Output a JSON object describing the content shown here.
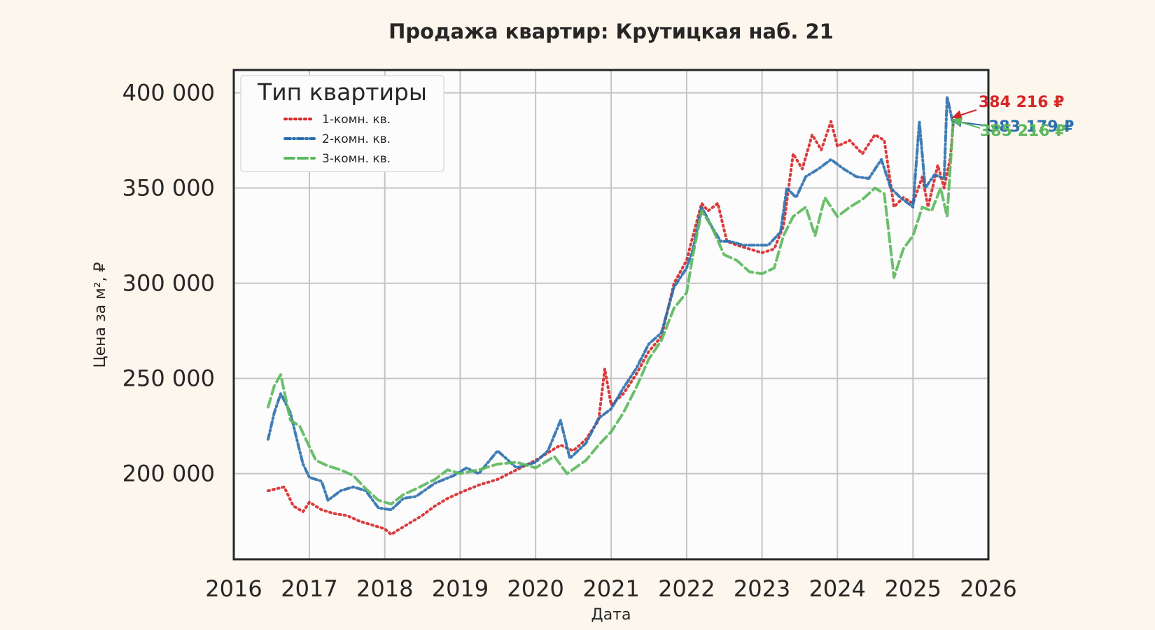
{
  "chart_data": {
    "type": "line",
    "title": "Продажа квартир: Крутицкая наб. 21",
    "xlabel": "Дата",
    "ylabel": "Цена за м², ₽",
    "xlim": [
      "2016-01-01",
      "2026-01-01"
    ],
    "ylim": [
      155000,
      412000
    ],
    "x_ticks": [
      "2016",
      "2017",
      "2018",
      "2019",
      "2020",
      "2021",
      "2022",
      "2023",
      "2024",
      "2025",
      "2026"
    ],
    "y_ticks": [
      {
        "value": 200000,
        "label": "200 000"
      },
      {
        "value": 250000,
        "label": "250 000"
      },
      {
        "value": 300000,
        "label": "300 000"
      },
      {
        "value": 350000,
        "label": "350 000"
      },
      {
        "value": 400000,
        "label": "400 000"
      }
    ],
    "grid": true,
    "legend": {
      "title": "Тип квартиры",
      "position": "top-left"
    },
    "series": [
      {
        "name": "1-комн. кв.",
        "color": "#d62728",
        "style": "dotted",
        "end_label": "384 216 ₽",
        "points": [
          [
            "2016-06-15",
            191000
          ],
          [
            "2016-09-01",
            193000
          ],
          [
            "2016-10-15",
            183000
          ],
          [
            "2016-12-01",
            180000
          ],
          [
            "2017-01-01",
            185000
          ],
          [
            "2017-03-01",
            181000
          ],
          [
            "2017-05-01",
            179000
          ],
          [
            "2017-07-01",
            178000
          ],
          [
            "2017-09-01",
            175000
          ],
          [
            "2017-11-01",
            173000
          ],
          [
            "2018-01-01",
            171000
          ],
          [
            "2018-02-01",
            168000
          ],
          [
            "2018-03-01",
            170000
          ],
          [
            "2018-05-01",
            174000
          ],
          [
            "2018-07-01",
            178000
          ],
          [
            "2018-09-01",
            183000
          ],
          [
            "2018-11-01",
            187000
          ],
          [
            "2019-01-01",
            190000
          ],
          [
            "2019-04-01",
            194000
          ],
          [
            "2019-07-01",
            197000
          ],
          [
            "2019-10-01",
            202000
          ],
          [
            "2020-01-01",
            207000
          ],
          [
            "2020-03-01",
            211000
          ],
          [
            "2020-05-01",
            215000
          ],
          [
            "2020-07-01",
            212000
          ],
          [
            "2020-09-01",
            218000
          ],
          [
            "2020-11-01",
            228000
          ],
          [
            "2020-12-01",
            255000
          ],
          [
            "2021-01-01",
            236000
          ],
          [
            "2021-03-01",
            242000
          ],
          [
            "2021-05-01",
            252000
          ],
          [
            "2021-07-01",
            264000
          ],
          [
            "2021-09-01",
            272000
          ],
          [
            "2021-11-01",
            300000
          ],
          [
            "2022-01-01",
            312000
          ],
          [
            "2022-02-01",
            325000
          ],
          [
            "2022-03-15",
            342000
          ],
          [
            "2022-04-15",
            338000
          ],
          [
            "2022-06-01",
            342000
          ],
          [
            "2022-07-15",
            322000
          ],
          [
            "2022-09-01",
            320000
          ],
          [
            "2022-11-01",
            318000
          ],
          [
            "2023-01-01",
            316000
          ],
          [
            "2023-03-01",
            318000
          ],
          [
            "2023-04-15",
            330000
          ],
          [
            "2023-06-01",
            368000
          ],
          [
            "2023-07-15",
            360000
          ],
          [
            "2023-09-01",
            378000
          ],
          [
            "2023-10-15",
            370000
          ],
          [
            "2023-12-01",
            385000
          ],
          [
            "2024-01-01",
            372000
          ],
          [
            "2024-03-01",
            375000
          ],
          [
            "2024-05-01",
            368000
          ],
          [
            "2024-07-01",
            378000
          ],
          [
            "2024-08-15",
            375000
          ],
          [
            "2024-10-01",
            340000
          ],
          [
            "2024-11-15",
            345000
          ],
          [
            "2025-01-01",
            342000
          ],
          [
            "2025-02-15",
            356000
          ],
          [
            "2025-03-15",
            340000
          ],
          [
            "2025-05-01",
            362000
          ],
          [
            "2025-06-01",
            350000
          ],
          [
            "2025-07-01",
            366000
          ],
          [
            "2025-07-15",
            384216
          ]
        ]
      },
      {
        "name": "2-комн. кв.",
        "color": "#2b6fad",
        "style": "dashdot",
        "end_label": "383 179 ₽",
        "points": [
          [
            "2016-06-15",
            218000
          ],
          [
            "2016-07-15",
            232000
          ],
          [
            "2016-08-15",
            242000
          ],
          [
            "2016-10-01",
            232000
          ],
          [
            "2016-11-01",
            218000
          ],
          [
            "2016-12-01",
            205000
          ],
          [
            "2017-01-01",
            198000
          ],
          [
            "2017-03-01",
            196000
          ],
          [
            "2017-04-01",
            186000
          ],
          [
            "2017-06-01",
            191000
          ],
          [
            "2017-08-01",
            193000
          ],
          [
            "2017-10-01",
            191000
          ],
          [
            "2017-12-01",
            182000
          ],
          [
            "2018-02-01",
            181000
          ],
          [
            "2018-04-01",
            187000
          ],
          [
            "2018-06-01",
            188000
          ],
          [
            "2018-09-01",
            195000
          ],
          [
            "2018-12-01",
            199000
          ],
          [
            "2019-02-01",
            203000
          ],
          [
            "2019-04-01",
            200000
          ],
          [
            "2019-07-01",
            212000
          ],
          [
            "2019-10-01",
            203000
          ],
          [
            "2020-01-01",
            206000
          ],
          [
            "2020-03-01",
            212000
          ],
          [
            "2020-05-01",
            228000
          ],
          [
            "2020-06-15",
            208000
          ],
          [
            "2020-09-01",
            216000
          ],
          [
            "2020-11-01",
            229000
          ],
          [
            "2021-01-01",
            234000
          ],
          [
            "2021-03-01",
            245000
          ],
          [
            "2021-05-01",
            255000
          ],
          [
            "2021-07-01",
            268000
          ],
          [
            "2021-09-01",
            274000
          ],
          [
            "2021-11-01",
            298000
          ],
          [
            "2022-01-01",
            308000
          ],
          [
            "2022-02-01",
            318000
          ],
          [
            "2022-03-15",
            340000
          ],
          [
            "2022-05-01",
            330000
          ],
          [
            "2022-06-15",
            322000
          ],
          [
            "2022-08-01",
            322000
          ],
          [
            "2022-10-01",
            320000
          ],
          [
            "2022-12-01",
            320000
          ],
          [
            "2023-02-01",
            320000
          ],
          [
            "2023-04-01",
            327000
          ],
          [
            "2023-05-01",
            350000
          ],
          [
            "2023-06-15",
            345000
          ],
          [
            "2023-08-01",
            356000
          ],
          [
            "2023-10-01",
            360000
          ],
          [
            "2023-12-01",
            365000
          ],
          [
            "2024-02-01",
            360000
          ],
          [
            "2024-04-01",
            356000
          ],
          [
            "2024-06-01",
            355000
          ],
          [
            "2024-08-01",
            365000
          ],
          [
            "2024-09-15",
            350000
          ],
          [
            "2024-11-01",
            345000
          ],
          [
            "2025-01-01",
            340000
          ],
          [
            "2025-02-01",
            385000
          ],
          [
            "2025-03-01",
            350000
          ],
          [
            "2025-04-15",
            357000
          ],
          [
            "2025-06-01",
            355000
          ],
          [
            "2025-06-15",
            398000
          ],
          [
            "2025-07-15",
            383179
          ]
        ]
      },
      {
        "name": "3-комн. кв.",
        "color": "#5cb85c",
        "style": "dashed",
        "end_label": "385 216 ₽",
        "points": [
          [
            "2016-06-15",
            235000
          ],
          [
            "2016-07-15",
            246000
          ],
          [
            "2016-08-15",
            252000
          ],
          [
            "2016-10-01",
            228000
          ],
          [
            "2016-11-15",
            225000
          ],
          [
            "2016-12-15",
            218000
          ],
          [
            "2017-02-01",
            207000
          ],
          [
            "2017-04-01",
            204000
          ],
          [
            "2017-06-01",
            202000
          ],
          [
            "2017-08-01",
            199000
          ],
          [
            "2017-10-01",
            192000
          ],
          [
            "2017-12-01",
            186000
          ],
          [
            "2018-02-01",
            184000
          ],
          [
            "2018-04-01",
            189000
          ],
          [
            "2018-06-01",
            192000
          ],
          [
            "2018-09-01",
            197000
          ],
          [
            "2018-11-01",
            202000
          ],
          [
            "2019-01-01",
            200000
          ],
          [
            "2019-04-01",
            202000
          ],
          [
            "2019-07-01",
            205000
          ],
          [
            "2019-10-01",
            206000
          ],
          [
            "2020-01-01",
            203000
          ],
          [
            "2020-04-01",
            209000
          ],
          [
            "2020-06-01",
            200000
          ],
          [
            "2020-09-01",
            207000
          ],
          [
            "2020-11-01",
            215000
          ],
          [
            "2021-01-01",
            222000
          ],
          [
            "2021-03-01",
            232000
          ],
          [
            "2021-05-01",
            245000
          ],
          [
            "2021-07-01",
            260000
          ],
          [
            "2021-09-01",
            270000
          ],
          [
            "2021-11-01",
            287000
          ],
          [
            "2022-01-01",
            295000
          ],
          [
            "2022-02-01",
            315000
          ],
          [
            "2022-03-15",
            338000
          ],
          [
            "2022-05-01",
            330000
          ],
          [
            "2022-07-01",
            315000
          ],
          [
            "2022-09-01",
            312000
          ],
          [
            "2022-11-01",
            306000
          ],
          [
            "2023-01-01",
            305000
          ],
          [
            "2023-03-01",
            308000
          ],
          [
            "2023-04-15",
            325000
          ],
          [
            "2023-06-01",
            335000
          ],
          [
            "2023-08-01",
            340000
          ],
          [
            "2023-09-15",
            325000
          ],
          [
            "2023-11-01",
            345000
          ],
          [
            "2024-01-01",
            335000
          ],
          [
            "2024-03-01",
            340000
          ],
          [
            "2024-05-01",
            344000
          ],
          [
            "2024-07-01",
            350000
          ],
          [
            "2024-08-15",
            347000
          ],
          [
            "2024-10-01",
            303000
          ],
          [
            "2024-11-15",
            318000
          ],
          [
            "2025-01-01",
            325000
          ],
          [
            "2025-02-15",
            340000
          ],
          [
            "2025-04-01",
            338000
          ],
          [
            "2025-05-15",
            350000
          ],
          [
            "2025-06-15",
            335000
          ],
          [
            "2025-07-15",
            385216
          ]
        ]
      }
    ]
  }
}
